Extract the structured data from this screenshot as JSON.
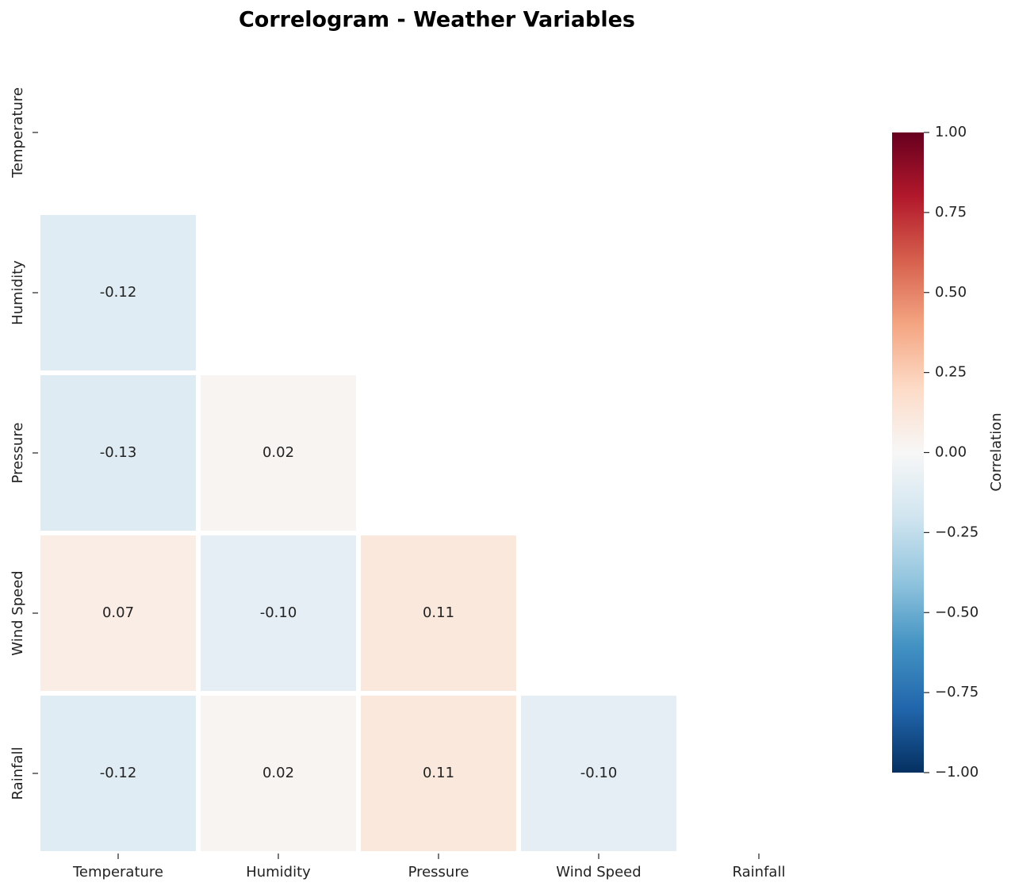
{
  "chart_data": {
    "type": "heatmap",
    "title": "Correlogram - Weather Variables",
    "x": [
      "Temperature",
      "Humidity",
      "Pressure",
      "Wind Speed",
      "Rainfall"
    ],
    "y": [
      "Temperature",
      "Humidity",
      "Pressure",
      "Wind Speed",
      "Rainfall"
    ],
    "values": [
      [
        null,
        null,
        null,
        null,
        null
      ],
      [
        -0.12,
        null,
        null,
        null,
        null
      ],
      [
        -0.13,
        0.02,
        null,
        null,
        null
      ],
      [
        0.07,
        -0.1,
        0.11,
        null,
        null
      ],
      [
        -0.12,
        0.02,
        0.11,
        -0.1,
        null
      ]
    ],
    "value_labels": [
      [
        null,
        null,
        null,
        null,
        null
      ],
      [
        "-0.12",
        null,
        null,
        null,
        null
      ],
      [
        "-0.13",
        "0.02",
        null,
        null,
        null
      ],
      [
        "0.07",
        "-0.10",
        "0.11",
        null,
        null
      ],
      [
        "-0.12",
        "0.02",
        "0.11",
        "-0.10",
        null
      ]
    ],
    "colormap": "RdBu_r",
    "zlim": [
      -1,
      1
    ],
    "zticks": [
      {
        "value": 1,
        "label": "1.00"
      },
      {
        "value": 0.75,
        "label": "0.75"
      },
      {
        "value": 0.5,
        "label": "0.50"
      },
      {
        "value": 0.25,
        "label": "0.25"
      },
      {
        "value": 0,
        "label": "0.00"
      },
      {
        "value": -0.25,
        "label": "−0.25"
      },
      {
        "value": -0.5,
        "label": "−0.50"
      },
      {
        "value": -0.75,
        "label": "−0.75"
      },
      {
        "value": -1,
        "label": "−1.00"
      }
    ],
    "colorbar_label": "Correlation"
  }
}
